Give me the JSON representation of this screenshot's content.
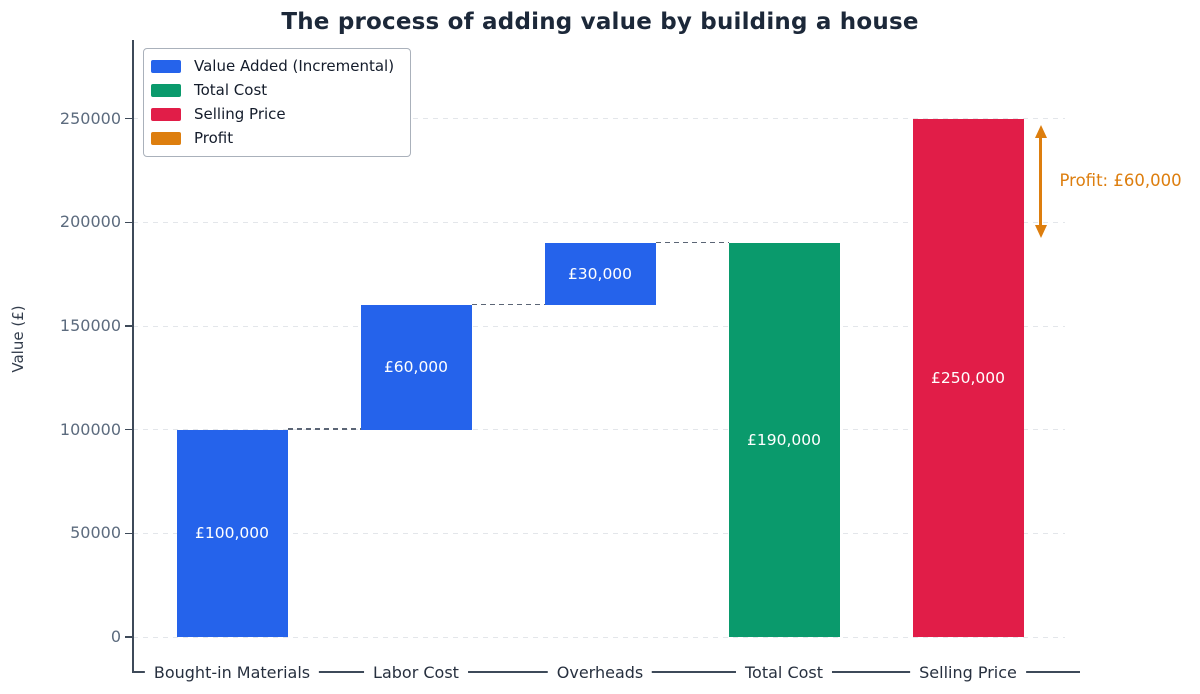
{
  "colors": {
    "value_added": "#2563EB",
    "total_cost": "#0A9A6C",
    "selling_price": "#E11D48",
    "profit": "#DD7E0E",
    "spine": "#3E4A59",
    "grid": "#E3E6EA",
    "connector": "#5B6575",
    "title_text": "#1C2839",
    "ytick_text": "#5C6B7E",
    "xtick_text": "#27303F"
  },
  "chart_data": {
    "type": "bar",
    "variant": "waterfall",
    "title": "The process of adding value by building a house",
    "xlabel": "",
    "ylabel": "Value (£)",
    "ylim": [
      0,
      287000
    ],
    "yticks": [
      0,
      50000,
      100000,
      150000,
      200000,
      250000
    ],
    "grid": "horizontal-dashed",
    "legend_position": "upper-left",
    "categories": [
      "Bought-in Materials",
      "Labor Cost",
      "Overheads",
      "Total Cost",
      "Selling Price"
    ],
    "bars": [
      {
        "category": "Bought-in Materials",
        "series": "Value Added (Incremental)",
        "base": 0,
        "top": 100000,
        "value": 100000,
        "label": "£100,000",
        "color": "#2563EB"
      },
      {
        "category": "Labor Cost",
        "series": "Value Added (Incremental)",
        "base": 100000,
        "top": 160000,
        "value": 60000,
        "label": "£60,000",
        "color": "#2563EB"
      },
      {
        "category": "Overheads",
        "series": "Value Added (Incremental)",
        "base": 160000,
        "top": 190000,
        "value": 30000,
        "label": "£30,000",
        "color": "#2563EB"
      },
      {
        "category": "Total Cost",
        "series": "Total Cost",
        "base": 0,
        "top": 190000,
        "value": 190000,
        "label": "£190,000",
        "color": "#0A9A6C"
      },
      {
        "category": "Selling Price",
        "series": "Selling Price",
        "base": 0,
        "top": 250000,
        "value": 250000,
        "label": "£250,000",
        "color": "#E11D48"
      }
    ],
    "connectors": [
      {
        "value": 100000,
        "from": 0,
        "to": 1
      },
      {
        "value": 160000,
        "from": 1,
        "to": 2
      },
      {
        "value": 190000,
        "from": 2,
        "to": 3
      }
    ],
    "annotation": {
      "label": "Profit: £60,000",
      "from_value": 190000,
      "to_value": 250000,
      "arrow": "double-vertical",
      "color": "#DD7E0E"
    },
    "legend": {
      "items": [
        {
          "label": "Value Added (Incremental)",
          "color": "#2563EB"
        },
        {
          "label": "Total Cost",
          "color": "#0A9A6C"
        },
        {
          "label": "Selling Price",
          "color": "#E11D48"
        },
        {
          "label": "Profit",
          "color": "#DD7E0E"
        }
      ]
    }
  }
}
